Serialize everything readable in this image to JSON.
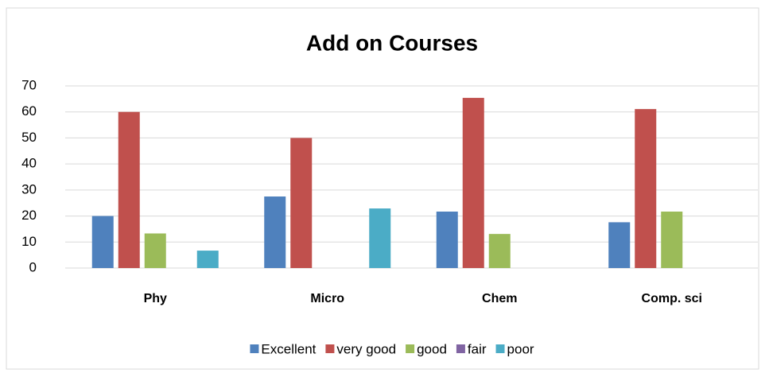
{
  "chart_data": {
    "type": "bar",
    "title": "Add on Courses",
    "categories": [
      "Phy",
      "Micro",
      "Chem",
      "Comp. sci"
    ],
    "series": [
      {
        "name": "Excellent",
        "color": "#4f81bd",
        "values": [
          20,
          27.5,
          21.7,
          17.6
        ]
      },
      {
        "name": "very good",
        "color": "#c0504d",
        "values": [
          60,
          50,
          65.4,
          61.1
        ]
      },
      {
        "name": "good",
        "color": "#9bbb59",
        "values": [
          13.3,
          0,
          13.1,
          21.7
        ]
      },
      {
        "name": "fair",
        "color": "#8064a2",
        "values": [
          0,
          0,
          0,
          0
        ]
      },
      {
        "name": "poor",
        "color": "#4bacc6",
        "values": [
          6.7,
          22.9,
          0,
          0
        ]
      }
    ],
    "ylim": [
      0,
      70
    ],
    "yticks": [
      0,
      10,
      20,
      30,
      40,
      50,
      60,
      70
    ],
    "grid": true,
    "legend": "bottom"
  }
}
